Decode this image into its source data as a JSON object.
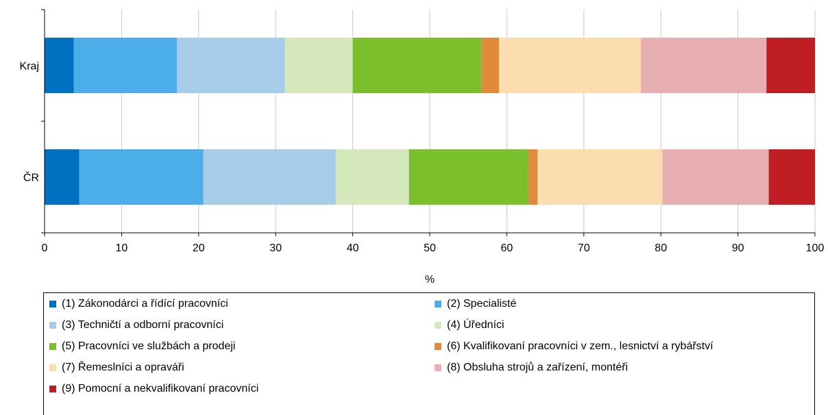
{
  "chart_data": {
    "type": "bar",
    "orientation": "horizontal",
    "stacked": true,
    "categories": [
      "Kraj",
      "ČR"
    ],
    "xlabel": "%",
    "xlim": [
      0,
      100
    ],
    "x_ticks": [
      "0",
      "10",
      "20",
      "30",
      "40",
      "50",
      "60",
      "70",
      "80",
      "90",
      "100"
    ],
    "grid": "vertical",
    "legend_position": "bottom",
    "series": [
      {
        "name": "(1) Zákonodárci a řídící pracovníci",
        "color": "#0070C0",
        "values": [
          3.8,
          4.5
        ]
      },
      {
        "name": "(2) Specialisté",
        "color": "#4BAEE8",
        "values": [
          13.4,
          16.1
        ]
      },
      {
        "name": "(3) Techničtí a odborní pracovníci",
        "color": "#A6CCE8",
        "values": [
          14.0,
          17.2
        ]
      },
      {
        "name": "(4) Úředníci",
        "color": "#D5E8BC",
        "values": [
          8.8,
          9.5
        ]
      },
      {
        "name": "(5) Pracovníci ve službách a prodeji",
        "color": "#7BBF2C",
        "values": [
          16.7,
          15.5
        ]
      },
      {
        "name": "(6) Kvalifikovaní pracovníci v zem., lesnictví a rybářství",
        "color": "#E08A3C",
        "values": [
          2.3,
          1.2
        ]
      },
      {
        "name": "(7) Řemeslníci a opraváři",
        "color": "#FCDDB0",
        "values": [
          18.4,
          16.2
        ]
      },
      {
        "name": "(8) Obsluha strojů a zařízení, montéři",
        "color": "#E8AFB2",
        "values": [
          16.3,
          13.8
        ]
      },
      {
        "name": "(9) Pomocní a nekvalifikovaní pracovníci",
        "color": "#BE1E24",
        "values": [
          6.3,
          6.0
        ]
      }
    ]
  }
}
